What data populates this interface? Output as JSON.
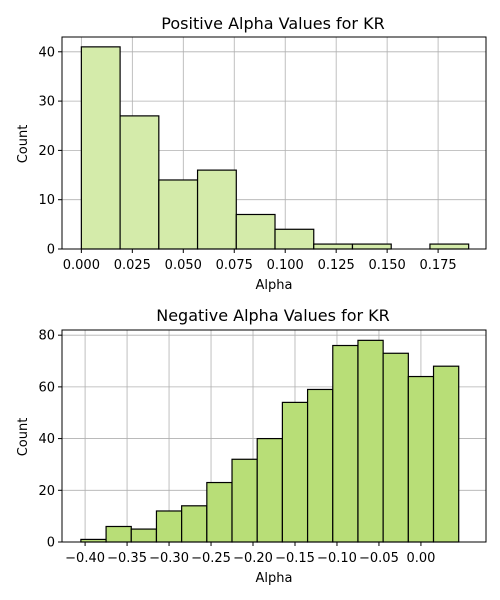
{
  "chart_data": [
    {
      "type": "bar",
      "title": "Positive Alpha Values for KR",
      "xlabel": "Alpha",
      "ylabel": "Count",
      "xlim": [
        -0.0095,
        0.1985
      ],
      "ylim": [
        0,
        43
      ],
      "grid": true,
      "bar_color": "#d4ebaa",
      "bin_edges": [
        0.0,
        0.019,
        0.038,
        0.057,
        0.076,
        0.095,
        0.114,
        0.133,
        0.152,
        0.171,
        0.19
      ],
      "values": [
        41,
        27,
        14,
        16,
        7,
        4,
        1,
        1,
        0,
        1
      ],
      "x_ticks": [
        0.0,
        0.025,
        0.05,
        0.075,
        0.1,
        0.125,
        0.15,
        0.175
      ],
      "x_tick_labels": [
        "0.000",
        "0.025",
        "0.050",
        "0.075",
        "0.100",
        "0.125",
        "0.150",
        "0.175"
      ],
      "y_ticks": [
        0,
        10,
        20,
        30,
        40
      ],
      "y_tick_labels": [
        "0",
        "10",
        "20",
        "30",
        "40"
      ]
    },
    {
      "type": "bar",
      "title": "Negative Alpha Values for KR",
      "xlabel": "Alpha",
      "ylabel": "Count",
      "xlim": [
        -0.4275,
        0.0775
      ],
      "ylim": [
        0,
        82
      ],
      "grid": true,
      "bar_color": "#b8de77",
      "bin_edges": [
        -0.405,
        -0.375,
        -0.345,
        -0.315,
        -0.285,
        -0.255,
        -0.225,
        -0.195,
        -0.165,
        -0.135,
        -0.105,
        -0.075,
        -0.045,
        -0.015,
        0.015,
        0.045
      ],
      "values": [
        1,
        6,
        5,
        12,
        14,
        23,
        32,
        40,
        54,
        59,
        76,
        78,
        73,
        64,
        68
      ],
      "x_ticks": [
        -0.4,
        -0.35,
        -0.3,
        -0.25,
        -0.2,
        -0.15,
        -0.1,
        -0.05,
        0.0
      ],
      "x_tick_labels": [
        "−0.40",
        "−0.35",
        "−0.30",
        "−0.25",
        "−0.20",
        "−0.15",
        "−0.10",
        "−0.05",
        "0.00"
      ],
      "y_ticks": [
        0,
        20,
        40,
        60,
        80
      ],
      "y_tick_labels": [
        "0",
        "20",
        "40",
        "60",
        "80"
      ]
    }
  ]
}
